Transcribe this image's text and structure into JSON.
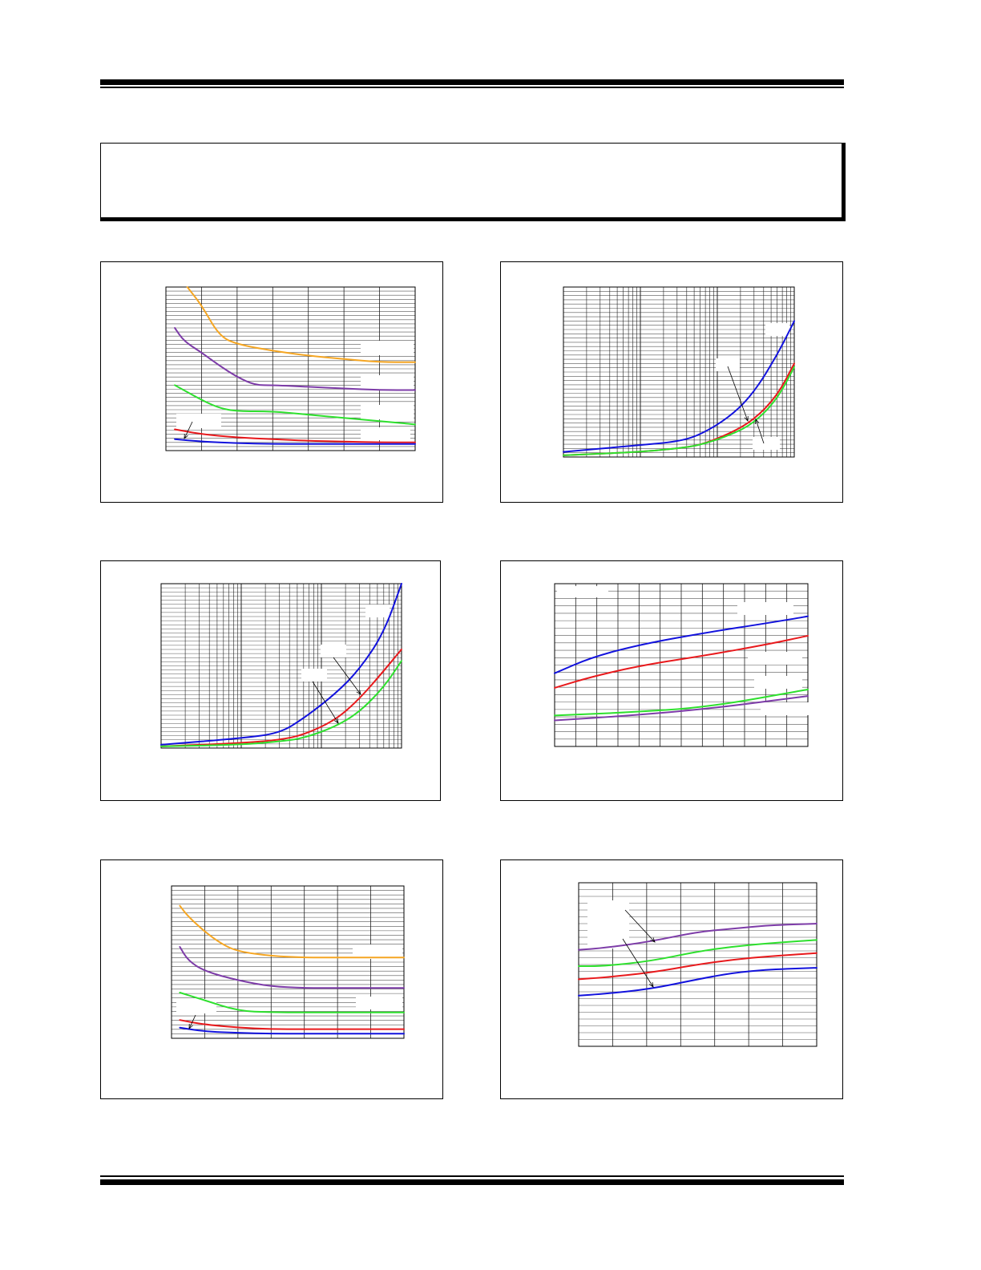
{
  "page": {
    "header_text": "",
    "footer_text": ""
  },
  "notice": {
    "text": ""
  },
  "colors": {
    "orange": "#f5a623",
    "purple": "#7d3ca8",
    "green": "#2ee02e",
    "red": "#e8191c",
    "blue": "#1212dd",
    "grid": "#555555"
  },
  "chart_data": [
    {
      "id": "fig-1",
      "type": "line",
      "title": "",
      "xlabel": "",
      "ylabel": "",
      "xscale": "linear",
      "xlim": [
        0,
        7
      ],
      "ylim": [
        0,
        100
      ],
      "grid": true,
      "legend": "none",
      "series": [
        {
          "color": "#f5a623",
          "x": [
            0.6,
            1.0,
            1.5,
            2.0,
            3.0,
            4.0,
            5.0,
            6.0,
            7.0
          ],
          "y": [
            100,
            89,
            70,
            65,
            61,
            58,
            56,
            54,
            54
          ]
        },
        {
          "color": "#7d3ca8",
          "x": [
            0.25,
            0.5,
            1.0,
            1.5,
            2.0,
            2.5,
            3.0,
            4.0,
            5.0,
            6.0,
            7.0
          ],
          "y": [
            75,
            67,
            60,
            52,
            45,
            40,
            40,
            39,
            38,
            37,
            37
          ]
        },
        {
          "color": "#2ee02e",
          "x": [
            0.25,
            0.5,
            1.0,
            1.5,
            2.0,
            3.0,
            4.0,
            5.0,
            6.0,
            7.0
          ],
          "y": [
            40,
            37,
            31,
            26,
            24,
            24,
            22,
            20,
            18,
            16
          ]
        },
        {
          "color": "#e8191c",
          "x": [
            0.25,
            1.0,
            2.0,
            3.0,
            4.0,
            5.0,
            6.0,
            7.0
          ],
          "y": [
            13,
            10,
            8,
            7,
            6,
            5.5,
            5,
            5
          ]
        },
        {
          "color": "#1212dd",
          "x": [
            0.25,
            1.0,
            2.0,
            3.0,
            4.0,
            5.0,
            6.0,
            7.0
          ],
          "y": [
            7,
            5.5,
            4.5,
            4,
            4,
            4,
            4,
            4
          ]
        }
      ]
    },
    {
      "id": "fig-2",
      "type": "line",
      "title": "",
      "xlabel": "",
      "ylabel": "",
      "xscale": "log",
      "xlim": [
        1,
        1000
      ],
      "ylim": [
        0,
        100
      ],
      "grid": true,
      "legend": "none",
      "series": [
        {
          "color": "#1212dd",
          "x": [
            1,
            10,
            30,
            60,
            150,
            300,
            600,
            1000
          ],
          "y": [
            3,
            7,
            9,
            13,
            24,
            38,
            60,
            80
          ]
        },
        {
          "color": "#e8191c",
          "x": [
            1,
            10,
            30,
            60,
            150,
            300,
            600,
            1000
          ],
          "y": [
            1,
            3,
            5,
            7,
            14,
            22,
            36,
            55
          ]
        },
        {
          "color": "#2ee02e",
          "x": [
            1,
            10,
            30,
            60,
            150,
            300,
            600,
            1000
          ],
          "y": [
            1,
            3,
            5,
            7,
            13,
            20,
            34,
            53
          ]
        }
      ]
    },
    {
      "id": "fig-3",
      "type": "line",
      "title": "",
      "xlabel": "",
      "ylabel": "",
      "xscale": "log",
      "xlim": [
        1,
        1000
      ],
      "ylim": [
        0,
        100
      ],
      "grid": true,
      "legend": "none",
      "series": [
        {
          "color": "#1212dd",
          "x": [
            1,
            10,
            30,
            60,
            150,
            300,
            600,
            1000
          ],
          "y": [
            2,
            6,
            9,
            18,
            33,
            48,
            70,
            100
          ]
        },
        {
          "color": "#e8191c",
          "x": [
            1,
            10,
            30,
            60,
            150,
            300,
            600,
            1000
          ],
          "y": [
            1,
            3,
            5,
            8,
            17,
            30,
            47,
            60
          ]
        },
        {
          "color": "#2ee02e",
          "x": [
            1,
            10,
            30,
            60,
            150,
            300,
            600,
            1000
          ],
          "y": [
            1,
            2,
            4,
            6,
            13,
            22,
            37,
            53
          ]
        }
      ]
    },
    {
      "id": "fig-4",
      "type": "line",
      "title": "",
      "xlabel": "",
      "ylabel": "",
      "xscale": "linear",
      "xlim": [
        0,
        100
      ],
      "ylim": [
        0,
        100
      ],
      "grid": true,
      "legend": "none",
      "series": [
        {
          "color": "#1212dd",
          "x": [
            0,
            15,
            35,
            60,
            85,
            100
          ],
          "y": [
            45,
            55,
            63,
            70,
            76,
            80
          ]
        },
        {
          "color": "#e8191c",
          "x": [
            0,
            15,
            35,
            60,
            85,
            100
          ],
          "y": [
            36,
            43,
            50,
            56,
            63,
            68
          ]
        },
        {
          "color": "#2ee02e",
          "x": [
            0,
            30,
            60,
            100
          ],
          "y": [
            19,
            21,
            24,
            35
          ]
        },
        {
          "color": "#7d3ca8",
          "x": [
            0,
            30,
            60,
            100
          ],
          "y": [
            16,
            19,
            23,
            31
          ]
        }
      ]
    },
    {
      "id": "fig-5",
      "type": "line",
      "title": "",
      "xlabel": "",
      "ylabel": "",
      "xscale": "linear",
      "xlim": [
        0,
        7
      ],
      "ylim": [
        0,
        100
      ],
      "grid": true,
      "legend": "none",
      "series": [
        {
          "color": "#f5a623",
          "x": [
            0.25,
            0.5,
            1.0,
            1.5,
            2.0,
            3.0,
            4.0,
            5.0,
            6.0,
            7.0
          ],
          "y": [
            87,
            80,
            70,
            62,
            57,
            54,
            53,
            53,
            53,
            53
          ]
        },
        {
          "color": "#7d3ca8",
          "x": [
            0.25,
            0.5,
            1.0,
            2.0,
            3.0,
            4.0,
            5.0,
            6.0,
            7.0
          ],
          "y": [
            60,
            51,
            44,
            38,
            34,
            33,
            33,
            33,
            33
          ]
        },
        {
          "color": "#2ee02e",
          "x": [
            0.25,
            1.0,
            2.0,
            3.0,
            4.0,
            5.0,
            6.0,
            7.0
          ],
          "y": [
            30,
            25,
            18,
            17,
            17,
            17,
            17,
            17
          ]
        },
        {
          "color": "#e8191c",
          "x": [
            0.25,
            1.0,
            2.0,
            3.0,
            4.0,
            5.0,
            6.0,
            7.0
          ],
          "y": [
            12,
            9,
            7,
            6,
            6,
            6,
            6,
            6
          ]
        },
        {
          "color": "#1212dd",
          "x": [
            0.25,
            1.0,
            2.0,
            3.0,
            4.0,
            5.0,
            6.0,
            7.0
          ],
          "y": [
            7,
            4.5,
            3.5,
            3,
            3,
            3,
            3,
            3
          ]
        }
      ]
    },
    {
      "id": "fig-6",
      "type": "line",
      "title": "",
      "xlabel": "",
      "ylabel": "",
      "xscale": "linear",
      "xlim": [
        0,
        100
      ],
      "ylim": [
        0,
        100
      ],
      "grid": true,
      "legend": "none",
      "series": [
        {
          "color": "#7d3ca8",
          "x": [
            0,
            10,
            30,
            50,
            65,
            80,
            100
          ],
          "y": [
            59,
            60,
            64,
            70,
            72,
            74,
            75
          ]
        },
        {
          "color": "#2ee02e",
          "x": [
            0,
            10,
            30,
            50,
            65,
            80,
            100
          ],
          "y": [
            49,
            49,
            52,
            58,
            61,
            63,
            65
          ]
        },
        {
          "color": "#e8191c",
          "x": [
            0,
            10,
            30,
            50,
            65,
            80,
            100
          ],
          "y": [
            41,
            42,
            45,
            50,
            53,
            55,
            57
          ]
        },
        {
          "color": "#1212dd",
          "x": [
            0,
            10,
            30,
            50,
            65,
            80,
            100
          ],
          "y": [
            31,
            32,
            35,
            41,
            45,
            47,
            48
          ]
        }
      ]
    }
  ]
}
